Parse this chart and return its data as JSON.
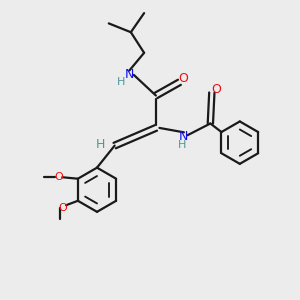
{
  "bg_color": "#ececec",
  "bond_color": "#1a1a1a",
  "N_color": "#1010ee",
  "O_color": "#ee1010",
  "H_color": "#4a9898",
  "line_width": 1.6,
  "figsize": [
    3.0,
    3.0
  ],
  "dpi": 100,
  "xlim": [
    0,
    10
  ],
  "ylim": [
    0,
    10
  ]
}
